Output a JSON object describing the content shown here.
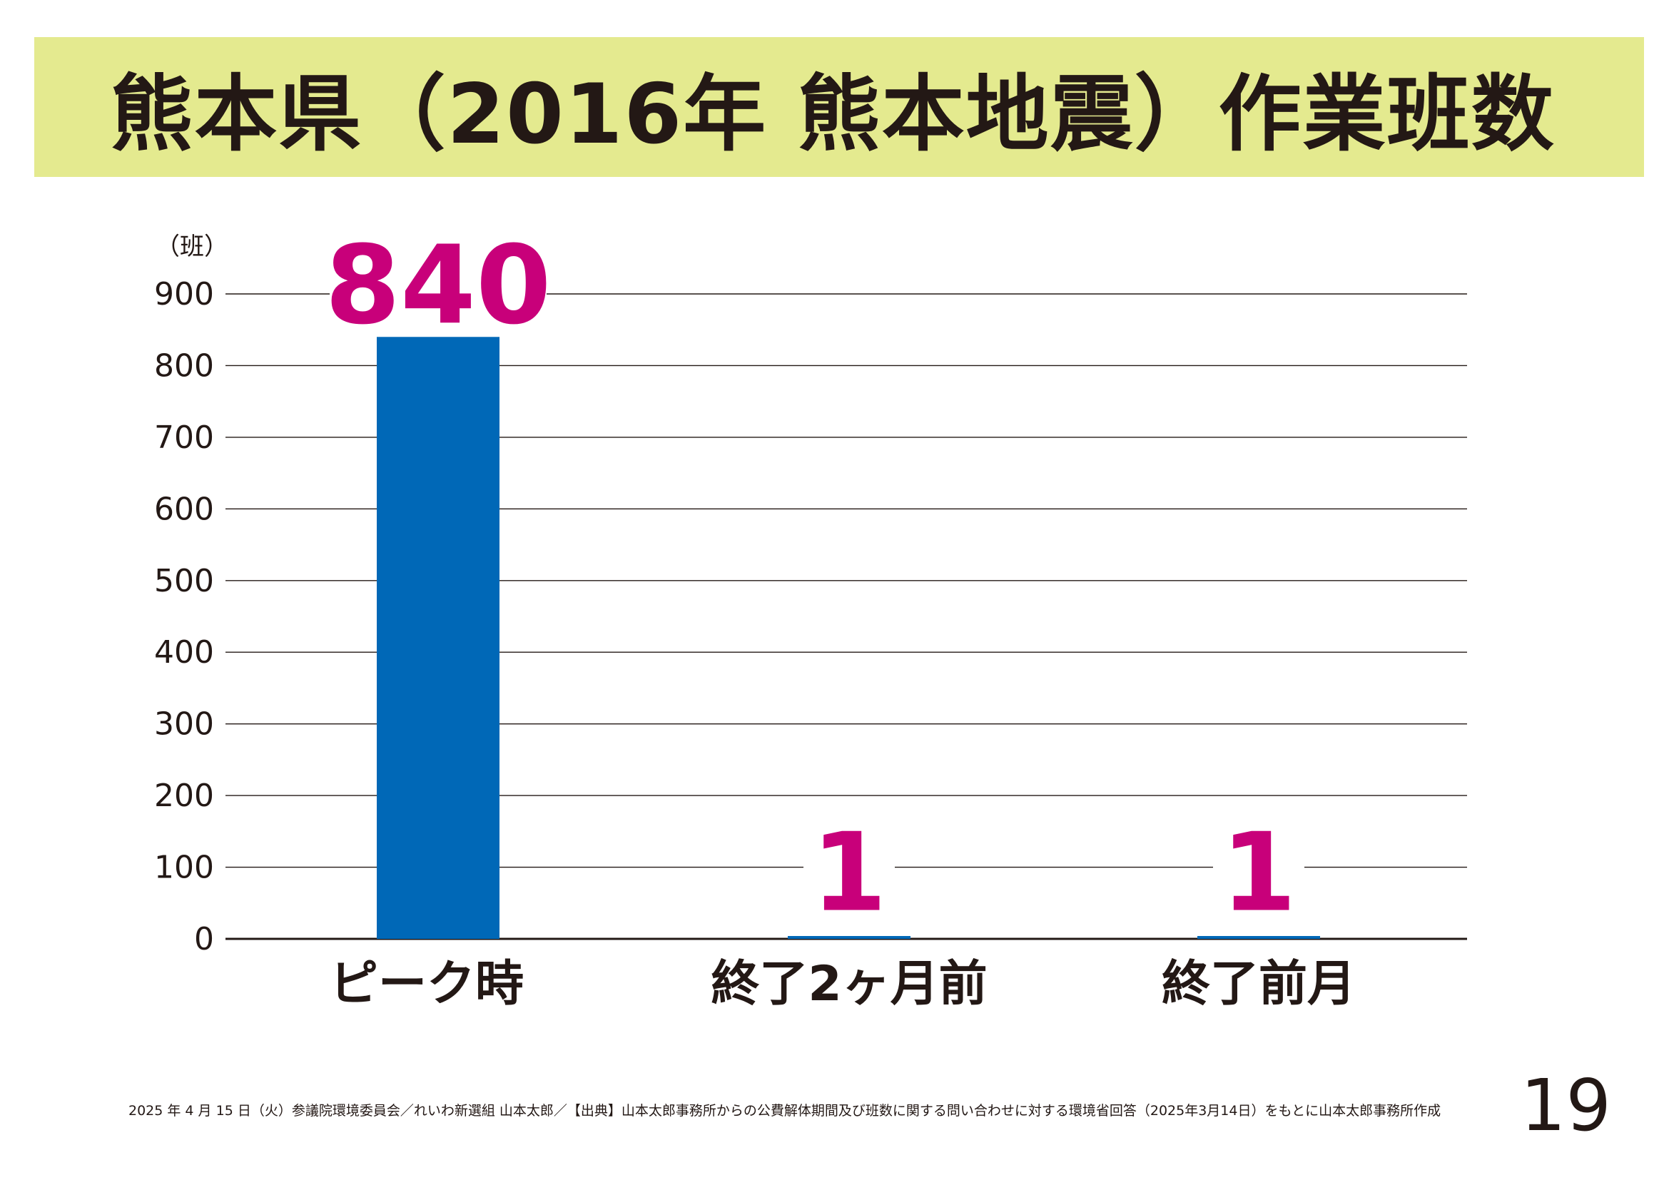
{
  "title": "熊本県（2016年 熊本地震）作業班数",
  "chart_data": {
    "type": "bar",
    "unit_label": "（班）",
    "categories": [
      "ピーク時",
      "終了2ヶ月前",
      "終了前月"
    ],
    "values": [
      840,
      1,
      1
    ],
    "data_labels": [
      "840",
      "1",
      "1"
    ],
    "ylim": [
      0,
      900
    ],
    "yticks": [
      0,
      100,
      200,
      300,
      400,
      500,
      600,
      700,
      800,
      900
    ],
    "grid": true,
    "bar_color": "#0068b7",
    "label_color": "#c8007a"
  },
  "footer": "2025 年 4 月 15 日（火）参議院環境委員会／れいわ新選組 山本太郎／【出典】山本太郎事務所からの公費解体期間及び班数に関する問い合わせに対する環境省回答（2025年3月14日）をもとに山本太郎事務所作成",
  "page_number": "19"
}
